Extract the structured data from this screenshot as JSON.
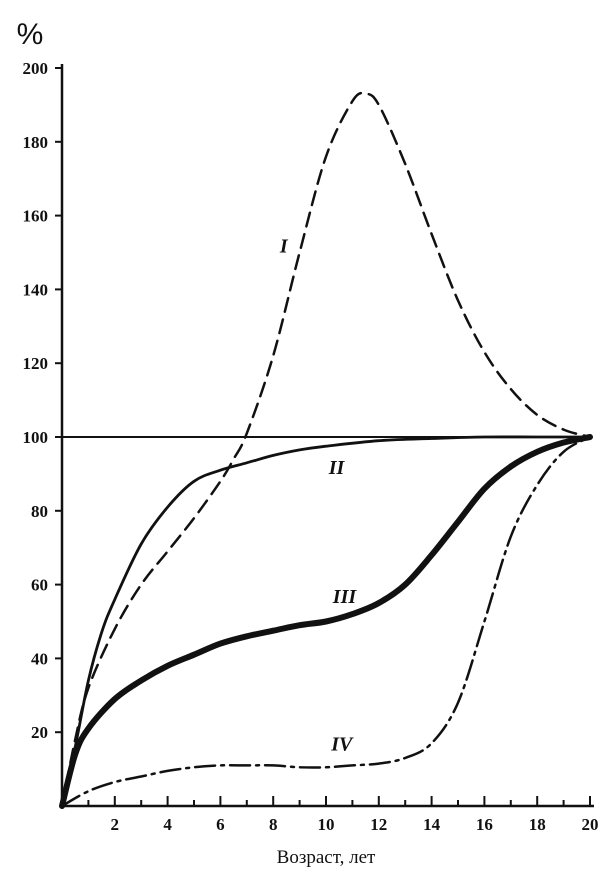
{
  "chart_data": {
    "type": "line",
    "title": "",
    "ylabel": "%",
    "xlabel": "Возраст, лет",
    "xlim": [
      0,
      20
    ],
    "ylim": [
      0,
      200
    ],
    "x_ticks": [
      2,
      4,
      6,
      8,
      10,
      12,
      14,
      16,
      18,
      20
    ],
    "y_ticks": [
      20,
      40,
      60,
      80,
      100,
      120,
      140,
      160,
      180,
      200
    ],
    "grid": false,
    "reference_line": {
      "y": 100
    },
    "series": [
      {
        "name": "I",
        "style": "dashed",
        "x": [
          0,
          0.5,
          1,
          2,
          3,
          4,
          5,
          6,
          6.5,
          7,
          8,
          9,
          10,
          11,
          11.5,
          12,
          13,
          14,
          15,
          16,
          17,
          18,
          19,
          20
        ],
        "y": [
          0,
          18,
          32,
          48,
          60,
          69,
          78,
          88,
          94,
          101,
          122,
          150,
          176,
          191,
          193,
          190,
          174,
          155,
          137,
          123,
          113,
          106,
          102,
          100
        ]
      },
      {
        "name": "II",
        "style": "solid",
        "x": [
          0,
          0.5,
          1,
          1.5,
          2,
          3,
          4,
          5,
          6,
          7,
          8,
          9,
          10,
          12,
          14,
          16,
          18,
          20
        ],
        "y": [
          0,
          16,
          34,
          47,
          56,
          71,
          81,
          88,
          91,
          93,
          95,
          96.5,
          97.5,
          99,
          99.6,
          100,
          100,
          100
        ]
      },
      {
        "name": "III",
        "style": "thick",
        "x": [
          0,
          0.5,
          1,
          2,
          3,
          4,
          5,
          6,
          7,
          8,
          9,
          10,
          11,
          12,
          13,
          14,
          15,
          16,
          17,
          18,
          19,
          20
        ],
        "y": [
          0,
          14,
          21,
          29,
          34,
          38,
          41,
          44,
          46,
          47.5,
          49,
          50,
          52,
          55,
          60,
          68,
          77,
          86,
          92,
          96,
          98.5,
          100
        ]
      },
      {
        "name": "IV",
        "style": "dash-dot",
        "x": [
          0,
          1,
          2,
          3,
          4,
          5,
          6,
          7,
          8,
          9,
          10,
          11,
          12,
          13,
          14,
          15,
          16,
          17,
          18,
          19,
          20
        ],
        "y": [
          0,
          4,
          6.5,
          8,
          9.5,
          10.5,
          11,
          11,
          11,
          10.5,
          10.5,
          11,
          11.5,
          13,
          17,
          28,
          50,
          73,
          87,
          96,
          100
        ]
      }
    ],
    "series_label_pos": [
      {
        "name": "I",
        "x": 8.4,
        "y": 150
      },
      {
        "name": "II",
        "x": 10.4,
        "y": 90
      },
      {
        "name": "III",
        "x": 10.7,
        "y": 55
      },
      {
        "name": "IV",
        "x": 10.6,
        "y": 15
      }
    ]
  }
}
